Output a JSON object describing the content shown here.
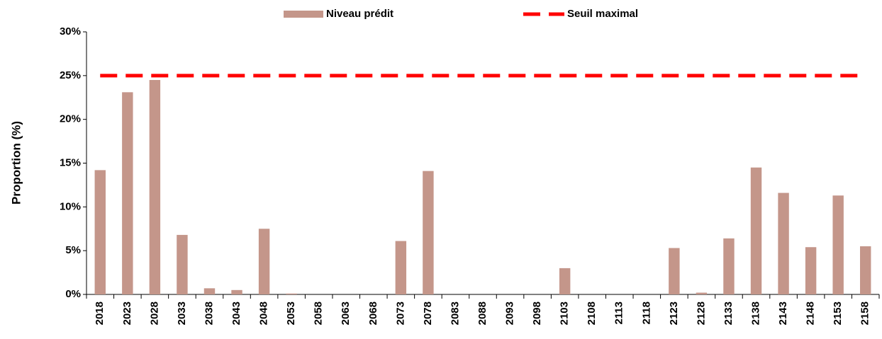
{
  "chart_data": {
    "type": "bar",
    "y_label": "Proportion (%)",
    "categories": [
      "2018",
      "2023",
      "2028",
      "2033",
      "2038",
      "2043",
      "2048",
      "2053",
      "2058",
      "2063",
      "2068",
      "2073",
      "2078",
      "2083",
      "2088",
      "2093",
      "2098",
      "2103",
      "2108",
      "2113",
      "2118",
      "2123",
      "2128",
      "2133",
      "2138",
      "2143",
      "2148",
      "2153",
      "2158"
    ],
    "series": [
      {
        "name": "Niveau prédit",
        "type": "bar",
        "color": "#c4968a",
        "values": [
          14.2,
          23.1,
          24.5,
          6.8,
          0.7,
          0.5,
          7.5,
          0.1,
          0,
          0,
          0,
          6.1,
          14.1,
          0,
          0,
          0,
          0,
          3.0,
          0,
          0,
          0,
          5.3,
          0.2,
          6.4,
          14.5,
          11.6,
          5.4,
          11.3,
          5.5
        ]
      },
      {
        "name": "Seuil maximal",
        "type": "line",
        "color": "#ff0000",
        "dashed": true,
        "values": [
          25,
          25,
          25,
          25,
          25,
          25,
          25,
          25,
          25,
          25,
          25,
          25,
          25,
          25,
          25,
          25,
          25,
          25,
          25,
          25,
          25,
          25,
          25,
          25,
          25,
          25,
          25,
          25,
          25
        ]
      }
    ],
    "ylim": [
      0,
      30
    ],
    "yticks": [
      {
        "value": 0,
        "label": "0%"
      },
      {
        "value": 5,
        "label": "5%"
      },
      {
        "value": 10,
        "label": "10%"
      },
      {
        "value": 15,
        "label": "15%"
      },
      {
        "value": 20,
        "label": "20%"
      },
      {
        "value": 25,
        "label": "25%"
      },
      {
        "value": 30,
        "label": "30%"
      }
    ],
    "grid": false,
    "legend": "top"
  }
}
